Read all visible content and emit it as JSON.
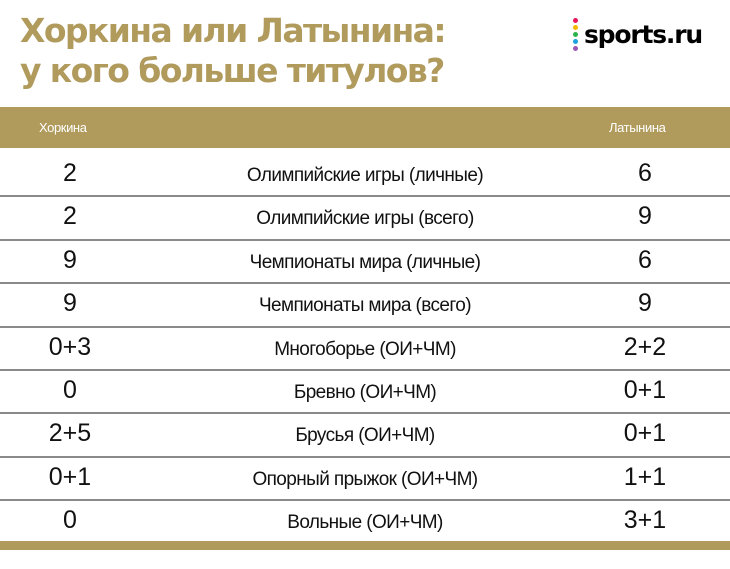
{
  "title": {
    "line1": "Хоркина или Латынина:",
    "line2": "у кого больше титулов?"
  },
  "brand": {
    "logo_text": "sports.ru",
    "dot_colors": [
      "#e8175d",
      "#f5b800",
      "#2db34a",
      "#1aa3e0",
      "#9b59b6"
    ]
  },
  "colors": {
    "accent": "#b09a5c",
    "divider": "#8a8a8a"
  },
  "table": {
    "header": {
      "left": "Хоркина",
      "right": "Латынина"
    },
    "rows": [
      {
        "left": "2",
        "label": "Олимпийские игры (личные)",
        "right": "6"
      },
      {
        "left": "2",
        "label": "Олимпийские игры (всего)",
        "right": "9"
      },
      {
        "left": "9",
        "label": "Чемпионаты мира (личные)",
        "right": "6"
      },
      {
        "left": "9",
        "label": "Чемпионаты мира (всего)",
        "right": "9"
      },
      {
        "left": "0+3",
        "label": "Многоборье (ОИ+ЧМ)",
        "right": "2+2"
      },
      {
        "left": "0",
        "label": "Бревно (ОИ+ЧМ)",
        "right": "0+1"
      },
      {
        "left": "2+5",
        "label": "Брусья (ОИ+ЧМ)",
        "right": "0+1"
      },
      {
        "left": "0+1",
        "label": "Опорный прыжок (ОИ+ЧМ)",
        "right": "1+1"
      },
      {
        "left": "0",
        "label": "Вольные (ОИ+ЧМ)",
        "right": "3+1"
      }
    ]
  }
}
